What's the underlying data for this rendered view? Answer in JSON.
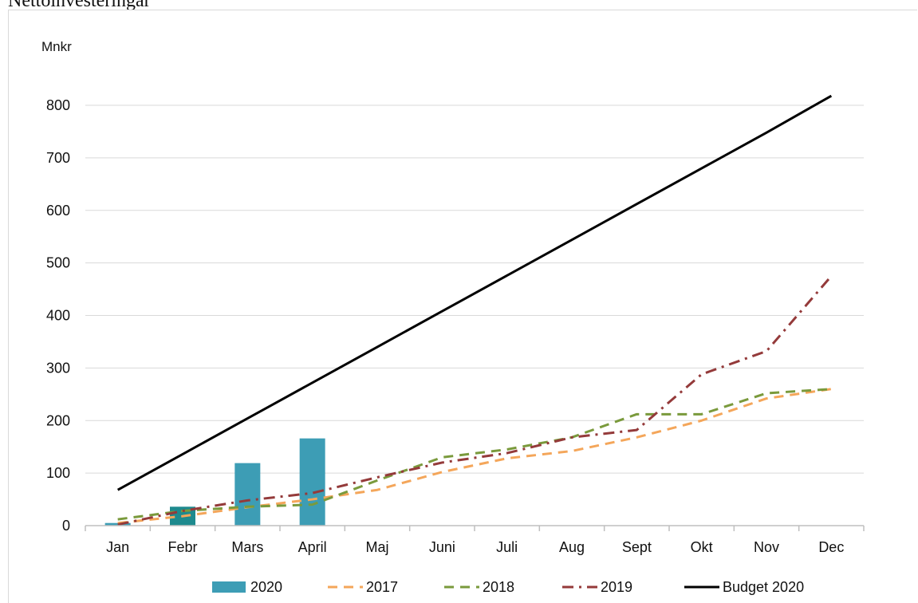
{
  "page": {
    "heading": "Nettoinvesteringar"
  },
  "chart_data": {
    "type": "bar",
    "ylabel": "Mnkr",
    "ylim": [
      0,
      800
    ],
    "yticks": [
      0,
      100,
      200,
      300,
      400,
      500,
      600,
      700,
      800
    ],
    "categories": [
      "Jan",
      "Febr",
      "Mars",
      "April",
      "Maj",
      "Juni",
      "Juli",
      "Aug",
      "Sept",
      "Okt",
      "Nov",
      "Dec"
    ],
    "grid": true,
    "legend": "bottom",
    "series": [
      {
        "name": "2020",
        "kind": "bar",
        "color": "#3d9db5",
        "highlight_color": "#1e8a8e",
        "values": [
          5,
          36,
          119,
          166,
          null,
          null,
          null,
          null,
          null,
          null,
          null,
          null
        ]
      },
      {
        "name": "2017",
        "kind": "line",
        "style": "dashed",
        "color": "#f4a65a",
        "values": [
          5,
          18,
          35,
          50,
          68,
          102,
          128,
          142,
          168,
          200,
          242,
          260
        ]
      },
      {
        "name": "2018",
        "kind": "line",
        "style": "dashed",
        "color": "#7a9a3c",
        "values": [
          12,
          28,
          36,
          40,
          86,
          130,
          145,
          168,
          212,
          212,
          252,
          260
        ]
      },
      {
        "name": "2019",
        "kind": "line",
        "style": "dashdot",
        "color": "#943a3a",
        "values": [
          2,
          28,
          48,
          62,
          92,
          120,
          138,
          168,
          182,
          288,
          332,
          475
        ]
      },
      {
        "name": "Budget 2020",
        "kind": "line",
        "style": "solid",
        "color": "#000000",
        "values": [
          68,
          136,
          204,
          272,
          340,
          408,
          476,
          544,
          612,
          680,
          748,
          818
        ]
      }
    ]
  }
}
